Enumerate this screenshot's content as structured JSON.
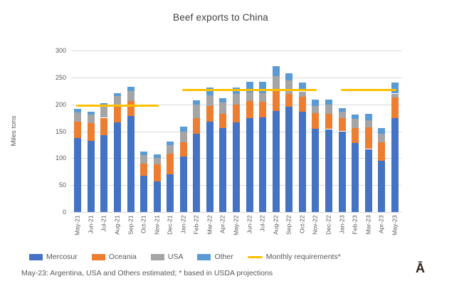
{
  "footnote": "May-23: Argentina, USA and Others estimated; * based in USDA projections",
  "watermark": "Ā",
  "legend": {
    "items": [
      {
        "label": "Mercosur",
        "color": "#4472C4",
        "type": "box"
      },
      {
        "label": "Oceania",
        "color": "#ED7D31",
        "type": "box"
      },
      {
        "label": "USA",
        "color": "#A5A5A5",
        "type": "box"
      },
      {
        "label": "Other",
        "color": "#5B9BD5",
        "type": "box"
      },
      {
        "label": "Monthly requirements*",
        "color": "#FFC000",
        "type": "line"
      }
    ]
  },
  "chart_data": {
    "type": "bar",
    "subtype": "stacked-with-line-overlay",
    "title": "Beef exports to China",
    "xlabel": "",
    "ylabel": "Miles tons",
    "ylim": [
      0,
      300
    ],
    "yticks": [
      0,
      50,
      100,
      150,
      200,
      250,
      300
    ],
    "grid": true,
    "legend_position": "bottom",
    "categories": [
      "May-21",
      "Jun-21",
      "Jul-21",
      "Aug-21",
      "Sep-21",
      "Oct-21",
      "Nov-21",
      "Dec-21",
      "Jan-22",
      "Feb-22",
      "Mar-22",
      "Apr-22",
      "May-22",
      "Jun-22",
      "Jul-22",
      "Aug-22",
      "Sep-22",
      "Oct-22",
      "Nov-22",
      "Dec-22",
      "Jan-23",
      "Feb-23",
      "Mar-23",
      "Apr-23",
      "May-23"
    ],
    "series": [
      {
        "name": "Mercosur",
        "color": "#4472C4",
        "values": [
          137,
          132,
          143,
          167,
          178,
          67,
          57,
          70,
          103,
          145,
          168,
          156,
          166,
          175,
          176,
          188,
          196,
          186,
          155,
          154,
          150,
          128,
          117,
          95,
          174
        ]
      },
      {
        "name": "Oceania",
        "color": "#ED7D31",
        "values": [
          31,
          33,
          32,
          28,
          28,
          23,
          31,
          38,
          27,
          30,
          29,
          26,
          34,
          31,
          29,
          38,
          23,
          28,
          29,
          28,
          25,
          28,
          40,
          34,
          39
        ]
      },
      {
        "name": "USA",
        "color": "#A5A5A5",
        "values": [
          17,
          16,
          20,
          20,
          19,
          16,
          13,
          16,
          19,
          25,
          20,
          21,
          19,
          16,
          16,
          26,
          25,
          10,
          13,
          17,
          12,
          17,
          14,
          17,
          7
        ]
      },
      {
        "name": "Other",
        "color": "#5B9BD5",
        "values": [
          7,
          6,
          7,
          6,
          8,
          6,
          6,
          7,
          10,
          7,
          15,
          8,
          13,
          20,
          21,
          19,
          14,
          17,
          12,
          10,
          6,
          8,
          12,
          10,
          21
        ]
      }
    ],
    "line_series": [
      {
        "name": "Monthly requirements*",
        "color": "#FFC000",
        "values": [
          197,
          197,
          197,
          197,
          197,
          197,
          197,
          null,
          227,
          227,
          227,
          227,
          227,
          227,
          227,
          227,
          227,
          227,
          227,
          null,
          227,
          227,
          227,
          227,
          227
        ]
      }
    ]
  }
}
